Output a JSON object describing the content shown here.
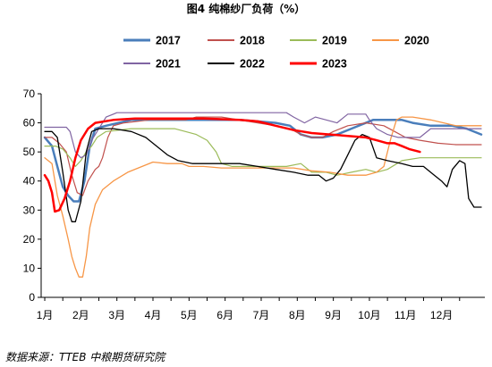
{
  "title": "图4 纯棉纱厂负荷（%）",
  "source": "数据来源：TTEB 中粮期货研究院",
  "chart_data": {
    "type": "line",
    "ylim": [
      0,
      70
    ],
    "yticks": [
      "0",
      "10",
      "20",
      "30",
      "40",
      "50",
      "60",
      "70"
    ],
    "x_range": [
      0,
      12.3
    ],
    "xticks": [
      {
        "pos": 0.1,
        "label": "1月"
      },
      {
        "pos": 1.1,
        "label": "2月"
      },
      {
        "pos": 2.1,
        "label": "3月"
      },
      {
        "pos": 3.1,
        "label": "4月"
      },
      {
        "pos": 4.1,
        "label": "5月"
      },
      {
        "pos": 5.1,
        "label": "6月"
      },
      {
        "pos": 6.1,
        "label": "7月"
      },
      {
        "pos": 7.1,
        "label": "8月"
      },
      {
        "pos": 8.1,
        "label": "9月"
      },
      {
        "pos": 9.1,
        "label": "10月"
      },
      {
        "pos": 10.1,
        "label": "11月"
      },
      {
        "pos": 11.1,
        "label": "12月"
      }
    ],
    "grid": false,
    "legend_position": "top",
    "series": [
      {
        "name": "2017",
        "color": "#4a7ebb",
        "width": 2.5,
        "points": [
          [
            0.1,
            55
          ],
          [
            0.3,
            52
          ],
          [
            0.45,
            45
          ],
          [
            0.6,
            38
          ],
          [
            0.75,
            35
          ],
          [
            0.9,
            33
          ],
          [
            1.05,
            33
          ],
          [
            1.2,
            40
          ],
          [
            1.35,
            52
          ],
          [
            1.5,
            58
          ],
          [
            1.8,
            59
          ],
          [
            2.5,
            61
          ],
          [
            3.5,
            61
          ],
          [
            4.5,
            61
          ],
          [
            5.5,
            61
          ],
          [
            6.5,
            60
          ],
          [
            6.9,
            59
          ],
          [
            7.2,
            56
          ],
          [
            7.5,
            55
          ],
          [
            7.8,
            55
          ],
          [
            8.2,
            56
          ],
          [
            8.6,
            58
          ],
          [
            9.2,
            61
          ],
          [
            10.0,
            61
          ],
          [
            10.3,
            60
          ],
          [
            10.8,
            59
          ],
          [
            11.4,
            59
          ],
          [
            11.8,
            58
          ],
          [
            12.2,
            56
          ]
        ]
      },
      {
        "name": "2018",
        "color": "#c0504d",
        "width": 1.2,
        "points": [
          [
            0.1,
            55
          ],
          [
            0.3,
            55
          ],
          [
            0.5,
            53
          ],
          [
            0.7,
            50
          ],
          [
            0.85,
            42
          ],
          [
            1.0,
            36
          ],
          [
            1.15,
            35
          ],
          [
            1.3,
            40
          ],
          [
            1.5,
            44
          ],
          [
            1.6,
            45
          ],
          [
            1.7,
            48
          ],
          [
            1.85,
            55
          ],
          [
            2.0,
            59
          ],
          [
            2.3,
            60
          ],
          [
            3.0,
            61
          ],
          [
            4.0,
            61
          ],
          [
            4.3,
            62
          ],
          [
            5.0,
            62
          ],
          [
            5.5,
            61
          ],
          [
            6.0,
            60
          ],
          [
            6.5,
            59
          ],
          [
            6.9,
            58
          ],
          [
            7.2,
            56
          ],
          [
            7.5,
            55
          ],
          [
            7.8,
            55
          ],
          [
            8.1,
            57
          ],
          [
            8.5,
            59
          ],
          [
            9.0,
            60
          ],
          [
            9.5,
            59
          ],
          [
            9.8,
            57
          ],
          [
            10.1,
            55
          ],
          [
            10.5,
            54
          ],
          [
            11.0,
            53
          ],
          [
            11.5,
            52.5
          ],
          [
            12.2,
            52.5
          ]
        ]
      },
      {
        "name": "2019",
        "color": "#9bbb59",
        "width": 1.2,
        "points": [
          [
            0.1,
            52
          ],
          [
            0.4,
            52
          ],
          [
            0.6,
            51
          ],
          [
            0.8,
            48
          ],
          [
            0.95,
            45
          ],
          [
            1.1,
            47
          ],
          [
            1.25,
            50
          ],
          [
            1.4,
            52
          ],
          [
            1.55,
            55
          ],
          [
            1.8,
            57
          ],
          [
            2.5,
            58
          ],
          [
            3.3,
            58
          ],
          [
            3.7,
            58
          ],
          [
            4.0,
            57
          ],
          [
            4.3,
            56
          ],
          [
            4.6,
            54
          ],
          [
            4.85,
            50
          ],
          [
            5.0,
            46
          ],
          [
            5.3,
            45
          ],
          [
            6.0,
            45
          ],
          [
            6.8,
            45
          ],
          [
            7.2,
            46
          ],
          [
            7.5,
            43
          ],
          [
            7.9,
            43
          ],
          [
            8.2,
            42
          ],
          [
            8.6,
            43
          ],
          [
            9.0,
            44
          ],
          [
            9.3,
            43
          ],
          [
            9.6,
            44
          ],
          [
            10.0,
            47
          ],
          [
            10.5,
            48
          ],
          [
            11.0,
            48
          ],
          [
            12.2,
            48
          ]
        ]
      },
      {
        "name": "2020",
        "color": "#f79646",
        "width": 1.3,
        "points": [
          [
            0.1,
            48
          ],
          [
            0.3,
            46
          ],
          [
            0.45,
            35
          ],
          [
            0.6,
            28
          ],
          [
            0.75,
            20
          ],
          [
            0.85,
            14
          ],
          [
            0.95,
            10
          ],
          [
            1.05,
            7
          ],
          [
            1.15,
            7
          ],
          [
            1.25,
            14
          ],
          [
            1.35,
            24
          ],
          [
            1.5,
            32
          ],
          [
            1.7,
            37
          ],
          [
            2.0,
            40
          ],
          [
            2.4,
            43
          ],
          [
            2.8,
            45
          ],
          [
            3.1,
            46.5
          ],
          [
            3.5,
            46
          ],
          [
            3.9,
            46
          ],
          [
            4.1,
            45
          ],
          [
            4.5,
            45
          ],
          [
            5.0,
            44.5
          ],
          [
            6.0,
            44.5
          ],
          [
            7.0,
            44.5
          ],
          [
            7.5,
            43.5
          ],
          [
            8.0,
            43
          ],
          [
            8.5,
            42
          ],
          [
            9.0,
            42
          ],
          [
            9.3,
            43
          ],
          [
            9.5,
            45
          ],
          [
            9.7,
            55
          ],
          [
            9.85,
            61
          ],
          [
            10.0,
            62
          ],
          [
            10.3,
            62
          ],
          [
            10.8,
            61
          ],
          [
            11.5,
            59
          ],
          [
            12.2,
            59
          ]
        ]
      },
      {
        "name": "2021",
        "color": "#8064a2",
        "width": 1.2,
        "points": [
          [
            0.1,
            58.5
          ],
          [
            0.7,
            58.5
          ],
          [
            0.8,
            57
          ],
          [
            0.95,
            50
          ],
          [
            1.1,
            48
          ],
          [
            1.25,
            49
          ],
          [
            1.4,
            54
          ],
          [
            1.6,
            58
          ],
          [
            1.8,
            62
          ],
          [
            2.1,
            63.5
          ],
          [
            3.0,
            63.5
          ],
          [
            4.0,
            63.5
          ],
          [
            5.0,
            63.5
          ],
          [
            6.0,
            63.5
          ],
          [
            6.5,
            63.5
          ],
          [
            6.8,
            63.5
          ],
          [
            7.0,
            62
          ],
          [
            7.3,
            60
          ],
          [
            7.6,
            62
          ],
          [
            7.9,
            61
          ],
          [
            8.2,
            60
          ],
          [
            8.5,
            63
          ],
          [
            9.0,
            63
          ],
          [
            9.1,
            61
          ],
          [
            9.3,
            58
          ],
          [
            9.6,
            56
          ],
          [
            9.9,
            55
          ],
          [
            10.2,
            55
          ],
          [
            10.5,
            55
          ],
          [
            10.8,
            58
          ],
          [
            11.2,
            58
          ],
          [
            11.6,
            58
          ],
          [
            12.2,
            58
          ]
        ]
      },
      {
        "name": "2022",
        "color": "#000000",
        "width": 1.3,
        "points": [
          [
            0.1,
            57
          ],
          [
            0.3,
            57
          ],
          [
            0.45,
            55
          ],
          [
            0.6,
            43
          ],
          [
            0.75,
            30
          ],
          [
            0.85,
            26
          ],
          [
            0.95,
            26
          ],
          [
            1.1,
            33
          ],
          [
            1.25,
            50
          ],
          [
            1.4,
            57
          ],
          [
            1.6,
            58
          ],
          [
            2.0,
            58
          ],
          [
            2.5,
            57
          ],
          [
            2.9,
            55
          ],
          [
            3.2,
            52
          ],
          [
            3.5,
            49
          ],
          [
            3.8,
            47
          ],
          [
            4.2,
            46
          ],
          [
            5.0,
            46
          ],
          [
            5.5,
            46
          ],
          [
            6.0,
            45
          ],
          [
            6.5,
            44
          ],
          [
            7.0,
            43
          ],
          [
            7.4,
            42
          ],
          [
            7.7,
            42
          ],
          [
            7.9,
            40
          ],
          [
            8.1,
            41
          ],
          [
            8.3,
            44
          ],
          [
            8.5,
            49
          ],
          [
            8.7,
            54
          ],
          [
            8.9,
            56
          ],
          [
            9.1,
            55
          ],
          [
            9.3,
            48
          ],
          [
            9.6,
            47
          ],
          [
            10.0,
            46
          ],
          [
            10.3,
            45
          ],
          [
            10.6,
            45
          ],
          [
            10.9,
            42
          ],
          [
            11.1,
            40
          ],
          [
            11.25,
            38
          ],
          [
            11.4,
            44
          ],
          [
            11.6,
            47
          ],
          [
            11.75,
            46
          ],
          [
            11.85,
            34
          ],
          [
            12.0,
            31
          ],
          [
            12.2,
            31
          ]
        ]
      },
      {
        "name": "2023",
        "color": "#ff0000",
        "width": 2.5,
        "points": [
          [
            0.1,
            42
          ],
          [
            0.2,
            40
          ],
          [
            0.3,
            36
          ],
          [
            0.38,
            29.5
          ],
          [
            0.5,
            30
          ],
          [
            0.65,
            34
          ],
          [
            0.8,
            40
          ],
          [
            0.95,
            48
          ],
          [
            1.1,
            54
          ],
          [
            1.3,
            58
          ],
          [
            1.5,
            60
          ],
          [
            2.0,
            61
          ],
          [
            2.6,
            61.5
          ],
          [
            3.5,
            61.5
          ],
          [
            4.5,
            61.5
          ],
          [
            5.5,
            61
          ],
          [
            6.0,
            60.5
          ],
          [
            6.5,
            59
          ],
          [
            7.0,
            57.5
          ],
          [
            7.5,
            56.5
          ],
          [
            8.0,
            56
          ],
          [
            8.5,
            55.5
          ],
          [
            9.0,
            55
          ],
          [
            9.3,
            54
          ],
          [
            9.6,
            53
          ],
          [
            9.8,
            53
          ],
          [
            10.0,
            52
          ],
          [
            10.2,
            51
          ],
          [
            10.5,
            50
          ]
        ]
      }
    ]
  }
}
